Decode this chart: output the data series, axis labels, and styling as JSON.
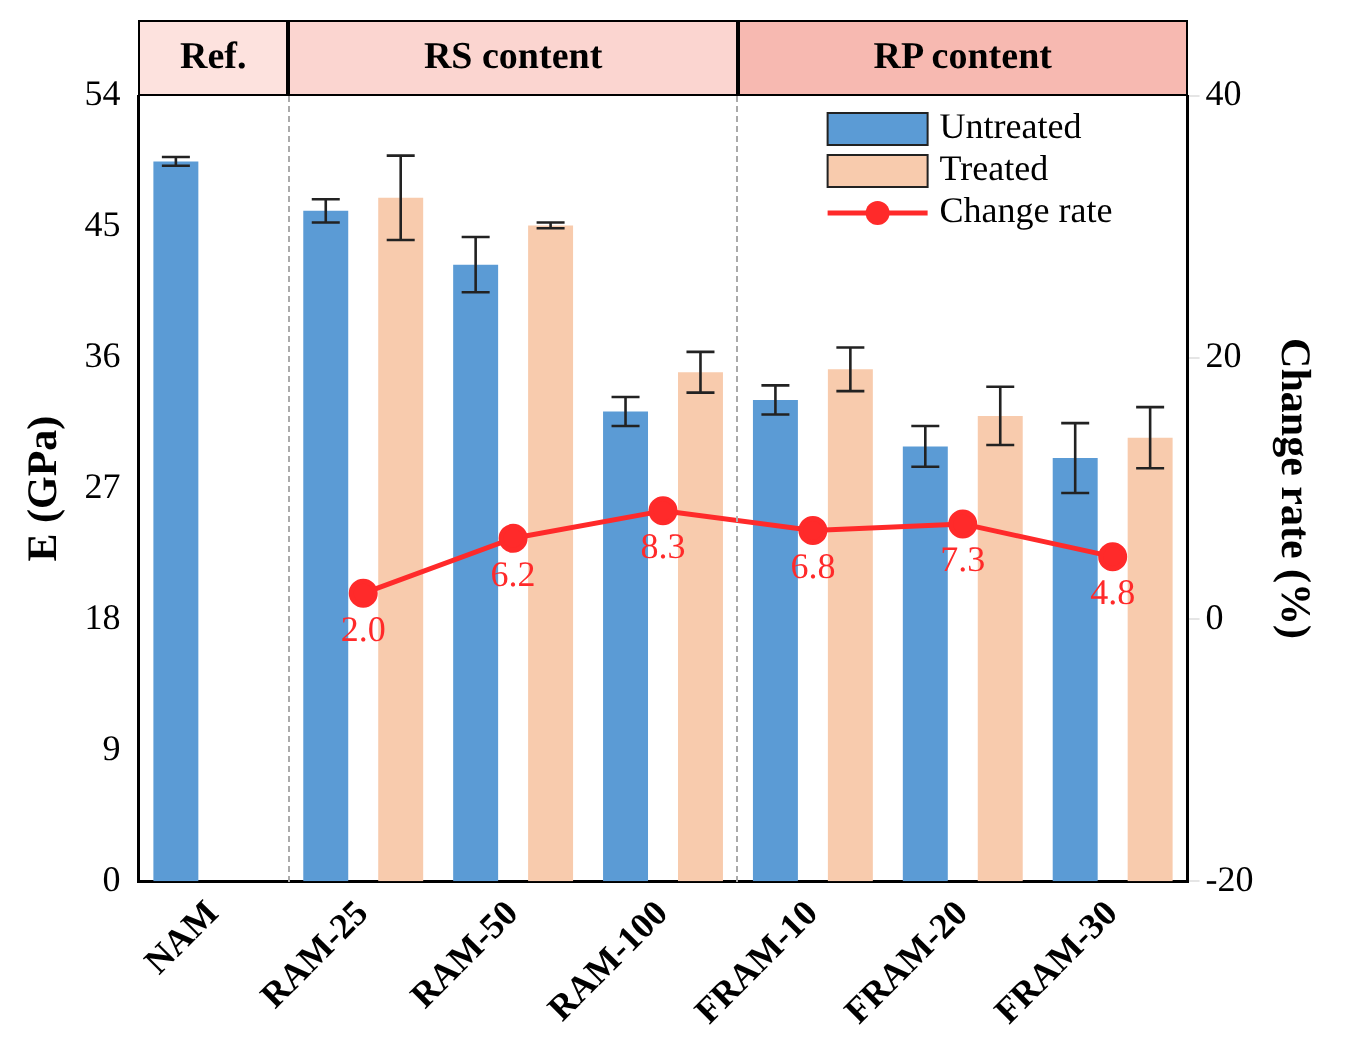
{
  "chart_data": {
    "type": "bar",
    "ylabel": "E (GPa)",
    "y2label": "Change rate (%)",
    "categories": [
      "NAM",
      "RAM-25",
      "RAM-50",
      "RAM-100",
      "FRAM-10",
      "FRAM-20",
      "FRAM-30"
    ],
    "series": [
      {
        "name": "Untreated",
        "color": "#5b9bd5",
        "values": [
          49.5,
          46.1,
          42.4,
          32.3,
          33.1,
          29.9,
          29.1
        ],
        "errors": [
          0.3,
          0.8,
          1.9,
          1.0,
          1.0,
          1.4,
          2.4
        ]
      },
      {
        "name": "Treated",
        "color": "#f8cbad",
        "values": [
          null,
          47.0,
          45.1,
          35.0,
          35.2,
          32.0,
          30.5
        ],
        "errors": [
          null,
          2.9,
          0.2,
          1.4,
          1.5,
          2.0,
          2.1
        ]
      },
      {
        "name": "Change rate",
        "type": "line",
        "axis": "y2",
        "color": "#ff2a2a",
        "values": [
          null,
          2.0,
          6.2,
          8.3,
          6.8,
          7.3,
          4.8
        ],
        "value_labels": [
          null,
          "2.0",
          "6.2",
          "8.3",
          "6.8",
          "7.3",
          "4.8"
        ]
      }
    ],
    "ylim": [
      0,
      54
    ],
    "yticks": [
      0,
      9,
      18,
      27,
      36,
      45,
      54
    ],
    "y2lim": [
      -20,
      40
    ],
    "y2ticks": [
      -20,
      0,
      20,
      40
    ],
    "annotations": [
      "Ref.",
      "RS content",
      "RP content"
    ],
    "marker": "circle",
    "legend": "top right",
    "grid": false
  }
}
